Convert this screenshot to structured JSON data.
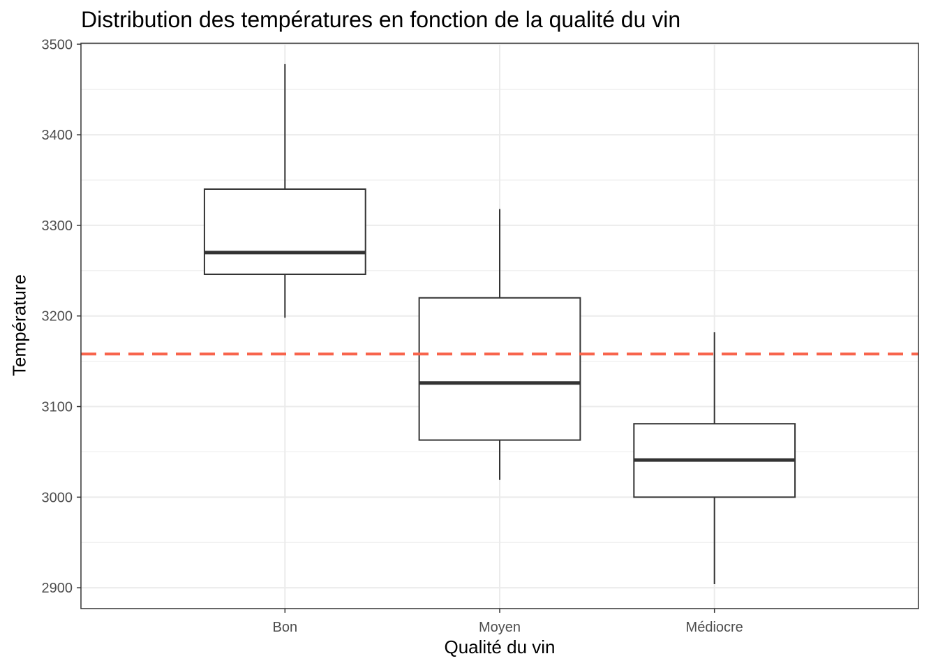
{
  "chart_data": {
    "type": "boxplot",
    "title": "Distribution des températures en fonction de la qualité du vin",
    "xlabel": "Qualité du vin",
    "ylabel": "Température",
    "ylim": [
      2877,
      3501
    ],
    "yticks": [
      2900,
      3000,
      3100,
      3200,
      3300,
      3400,
      3500
    ],
    "grid": true,
    "categories": [
      "Bon",
      "Moyen",
      "Médiocre"
    ],
    "boxes": [
      {
        "category": "Bon",
        "whisker_low": 3198,
        "q1": 3246,
        "median": 3270,
        "q3": 3340,
        "whisker_high": 3478
      },
      {
        "category": "Moyen",
        "whisker_low": 3019,
        "q1": 3063,
        "median": 3126,
        "q3": 3220,
        "whisker_high": 3318
      },
      {
        "category": "Médiocre",
        "whisker_low": 2904,
        "q1": 3000,
        "median": 3041,
        "q3": 3081,
        "whisker_high": 3182
      }
    ],
    "reference_line": {
      "y": 3158,
      "style": "dashed",
      "color": "#f8644c"
    },
    "colors": {
      "box_stroke": "#333333",
      "grid": "#ebebeb",
      "panel_border": "#333333"
    }
  }
}
